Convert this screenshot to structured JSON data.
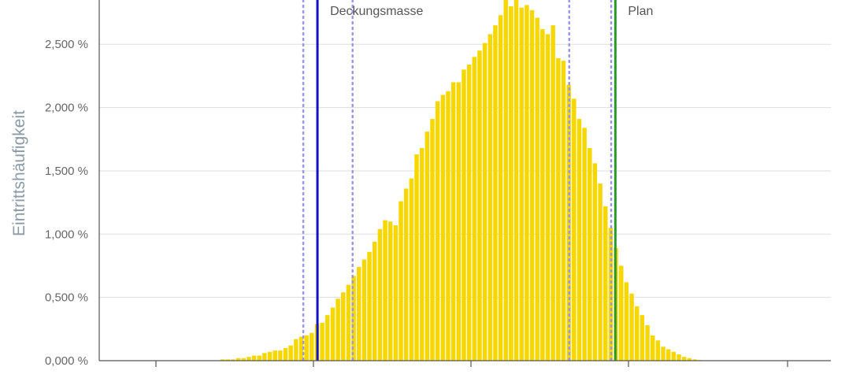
{
  "chart_data": {
    "type": "bar",
    "title": "",
    "xlabel": "",
    "ylabel": "Eintrittshäufigkeit",
    "ylim": [
      0,
      2.85
    ],
    "y_ticks": [
      "0,000 %",
      "0,500 %",
      "1,000 %",
      "1,500 %",
      "2,000 %",
      "2,500 %"
    ],
    "y_tick_values": [
      0,
      0.5,
      1.0,
      1.5,
      2.0,
      2.5
    ],
    "grid": "horizontal",
    "colors": {
      "bars": "#f7d700",
      "deckungsmasse": "#1010c8",
      "plan": "#2a9a2a",
      "quantile": "#9a96e6"
    },
    "bin_count": 115,
    "values": [
      0,
      0,
      0,
      0,
      0,
      0,
      0,
      0,
      0,
      0,
      0,
      0,
      0,
      0,
      0,
      0,
      0,
      0,
      0,
      0,
      0,
      0.01,
      0.01,
      0.01,
      0.02,
      0.02,
      0.03,
      0.04,
      0.04,
      0.06,
      0.07,
      0.08,
      0.08,
      0.1,
      0.12,
      0.17,
      0.19,
      0.2,
      0.22,
      0.29,
      0.3,
      0.36,
      0.42,
      0.49,
      0.54,
      0.6,
      0.67,
      0.74,
      0.8,
      0.86,
      0.94,
      1.04,
      1.11,
      1.1,
      1.07,
      1.26,
      1.36,
      1.44,
      1.63,
      1.68,
      1.81,
      1.91,
      2.05,
      2.1,
      2.13,
      2.2,
      2.2,
      2.3,
      2.34,
      2.4,
      2.45,
      2.51,
      2.58,
      2.65,
      2.73,
      2.88,
      2.8,
      2.85,
      2.79,
      2.81,
      2.77,
      2.71,
      2.62,
      2.58,
      2.65,
      2.39,
      2.37,
      2.18,
      2.07,
      1.91,
      1.84,
      1.68,
      1.56,
      1.4,
      1.22,
      1.05,
      0.89,
      0.75,
      0.62,
      0.53,
      0.43,
      0.36,
      0.28,
      0.2,
      0.16,
      0.11,
      0.09,
      0.07,
      0.05,
      0.03,
      0.02,
      0.01,
      0.005,
      0,
      0
    ],
    "reference_lines": [
      {
        "label": "Deckungsmasse",
        "bin": 39.5
      },
      {
        "label": "Plan",
        "bin": 96.3
      }
    ],
    "quantile_lines": [
      {
        "bin": 36.8
      },
      {
        "bin": 46.2
      },
      {
        "bin": 87.5
      },
      {
        "bin": 95.5
      }
    ]
  }
}
